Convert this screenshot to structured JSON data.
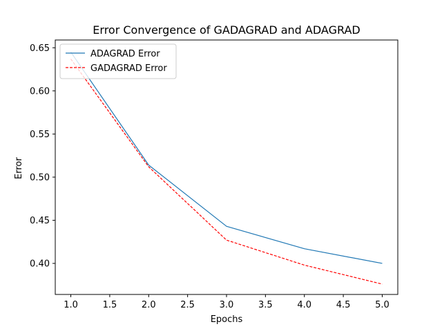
{
  "chart_data": {
    "type": "line",
    "title": "Error Convergence of GADAGRAD and ADAGRAD",
    "xlabel": "Epochs",
    "ylabel": "Error",
    "x": [
      1,
      2,
      3,
      4,
      5
    ],
    "xlim": [
      0.8,
      5.2
    ],
    "ylim": [
      0.364,
      0.659
    ],
    "xticks": [
      1.0,
      1.5,
      2.0,
      2.5,
      3.0,
      3.5,
      4.0,
      4.5,
      5.0
    ],
    "xtick_labels": [
      "1.0",
      "1.5",
      "2.0",
      "2.5",
      "3.0",
      "3.5",
      "4.0",
      "4.5",
      "5.0"
    ],
    "yticks": [
      0.4,
      0.45,
      0.5,
      0.55,
      0.6,
      0.65
    ],
    "ytick_labels": [
      "0.40",
      "0.45",
      "0.50",
      "0.55",
      "0.60",
      "0.65"
    ],
    "grid": false,
    "legend_position": "top-left",
    "series": [
      {
        "name": "ADAGRAD Error",
        "values": [
          0.645,
          0.514,
          0.443,
          0.417,
          0.4
        ],
        "color": "#1f77b4",
        "style": "solid"
      },
      {
        "name": "GADAGRAD Error",
        "values": [
          0.637,
          0.512,
          0.427,
          0.398,
          0.376
        ],
        "color": "#ff0000",
        "style": "dashed"
      }
    ]
  }
}
